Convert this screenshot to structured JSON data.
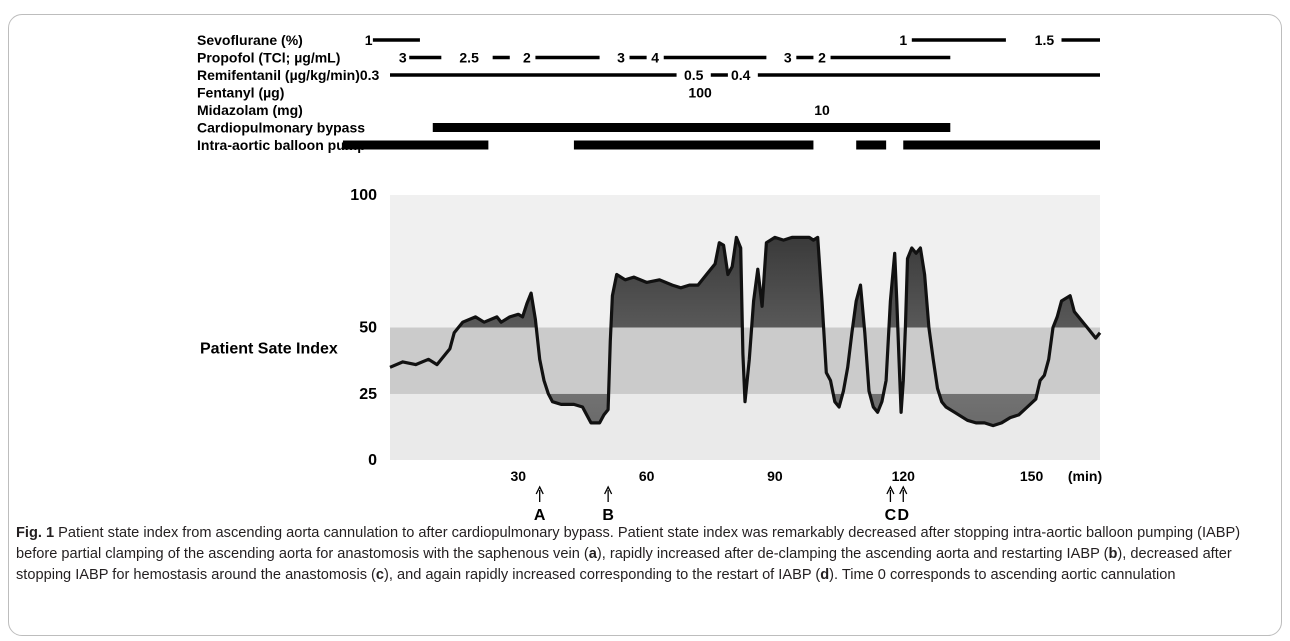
{
  "chart_data": {
    "type": "line",
    "x_unit": "(min)",
    "x_ticks": [
      30,
      60,
      90,
      120,
      150
    ],
    "y_ticks": [
      "100",
      "50",
      "25",
      "0"
    ],
    "ylabel": "Patient Sate Index",
    "ylim": [
      0,
      100
    ],
    "xlim": [
      0,
      166
    ],
    "band": [
      25,
      50
    ],
    "series": [
      {
        "values": [
          [
            0,
            35
          ],
          [
            3,
            37
          ],
          [
            6,
            36
          ],
          [
            9,
            38
          ],
          [
            11,
            36
          ],
          [
            13,
            40
          ],
          [
            14,
            42
          ],
          [
            15,
            48
          ],
          [
            17,
            52
          ],
          [
            20,
            54
          ],
          [
            22,
            52
          ],
          [
            25,
            54
          ],
          [
            26,
            52
          ],
          [
            28,
            54
          ],
          [
            30,
            55
          ],
          [
            31,
            54
          ],
          [
            32,
            59
          ],
          [
            33,
            63
          ],
          [
            34,
            53
          ],
          [
            35,
            38
          ],
          [
            36,
            30
          ],
          [
            37,
            25
          ],
          [
            38,
            22
          ],
          [
            40,
            21
          ],
          [
            43,
            21
          ],
          [
            45,
            20
          ],
          [
            46,
            17
          ],
          [
            47,
            14
          ],
          [
            48,
            14
          ],
          [
            49,
            14
          ],
          [
            50,
            17
          ],
          [
            51,
            19
          ],
          [
            51.5,
            45
          ],
          [
            52,
            62
          ],
          [
            53,
            70
          ],
          [
            55,
            68
          ],
          [
            57,
            69
          ],
          [
            60,
            67
          ],
          [
            63,
            68
          ],
          [
            66,
            66
          ],
          [
            68,
            65
          ],
          [
            70,
            66
          ],
          [
            72,
            66
          ],
          [
            74,
            70
          ],
          [
            76,
            74
          ],
          [
            77,
            82
          ],
          [
            78,
            81
          ],
          [
            79,
            70
          ],
          [
            80,
            73
          ],
          [
            81,
            84
          ],
          [
            82,
            80
          ],
          [
            82.5,
            40
          ],
          [
            83,
            22
          ],
          [
            84,
            38
          ],
          [
            85,
            60
          ],
          [
            86,
            72
          ],
          [
            87,
            58
          ],
          [
            88,
            82
          ],
          [
            90,
            84
          ],
          [
            92,
            83
          ],
          [
            94,
            84
          ],
          [
            96,
            84
          ],
          [
            98,
            84
          ],
          [
            99,
            83
          ],
          [
            100,
            84
          ],
          [
            101,
            60
          ],
          [
            102,
            33
          ],
          [
            103,
            30
          ],
          [
            104,
            22
          ],
          [
            105,
            20
          ],
          [
            106,
            26
          ],
          [
            107,
            35
          ],
          [
            108,
            48
          ],
          [
            109,
            60
          ],
          [
            110,
            66
          ],
          [
            111,
            48
          ],
          [
            112,
            26
          ],
          [
            113,
            20
          ],
          [
            114,
            18
          ],
          [
            115,
            22
          ],
          [
            116,
            30
          ],
          [
            117,
            60
          ],
          [
            118,
            78
          ],
          [
            118.5,
            60
          ],
          [
            119,
            38
          ],
          [
            119.5,
            18
          ],
          [
            120,
            30
          ],
          [
            120.5,
            50
          ],
          [
            121,
            76
          ],
          [
            122,
            80
          ],
          [
            123,
            78
          ],
          [
            124,
            80
          ],
          [
            125,
            70
          ],
          [
            126,
            50
          ],
          [
            127,
            38
          ],
          [
            128,
            27
          ],
          [
            129,
            22
          ],
          [
            130,
            20
          ],
          [
            132,
            18
          ],
          [
            135,
            15
          ],
          [
            137,
            14
          ],
          [
            139,
            14
          ],
          [
            141,
            13
          ],
          [
            143,
            14
          ],
          [
            145,
            16
          ],
          [
            147,
            17
          ],
          [
            149,
            20
          ],
          [
            151,
            23
          ],
          [
            152,
            30
          ],
          [
            153,
            32
          ],
          [
            154,
            38
          ],
          [
            155,
            50
          ],
          [
            156,
            54
          ],
          [
            157,
            60
          ],
          [
            159,
            62
          ],
          [
            160,
            56
          ],
          [
            162,
            52
          ],
          [
            163,
            50
          ],
          [
            164,
            48
          ],
          [
            165,
            46
          ],
          [
            166,
            48
          ]
        ]
      }
    ],
    "markers": [
      {
        "label": "A",
        "x": 35
      },
      {
        "label": "B",
        "x": 51
      },
      {
        "label": "C",
        "x": 117
      },
      {
        "label": "D",
        "x": 120
      }
    ]
  },
  "drug_rows": [
    {
      "name": "Sevoflurane (%)",
      "labels": [
        {
          "t": "1",
          "x": -5
        },
        {
          "t": "1",
          "x": 120
        },
        {
          "t": "1.5",
          "x": 153
        }
      ],
      "bars": [
        [
          -4,
          7,
          "thin"
        ],
        [
          122,
          144,
          "thin"
        ],
        [
          157,
          166,
          "thin"
        ]
      ]
    },
    {
      "name": "Propofol (TCl; µg/mL)",
      "labels": [
        {
          "t": "3",
          "x": 3
        },
        {
          "t": "2.5",
          "x": 18.5
        },
        {
          "t": "2",
          "x": 32
        },
        {
          "t": "3",
          "x": 54
        },
        {
          "t": "4",
          "x": 62
        },
        {
          "t": "3",
          "x": 93
        },
        {
          "t": "2",
          "x": 101
        }
      ],
      "bars": [
        [
          4.5,
          12,
          "thin"
        ],
        [
          24,
          28,
          "thin"
        ],
        [
          34,
          49,
          "thin"
        ],
        [
          56,
          60,
          "thin"
        ],
        [
          64,
          88,
          "thin"
        ],
        [
          95,
          99,
          "thin"
        ],
        [
          103,
          131,
          "thin"
        ]
      ]
    },
    {
      "name": "Remifentanil (µg/kg/min)0.3",
      "labels": [
        {
          "t": "0.5",
          "x": 71
        },
        {
          "t": "0.4",
          "x": 82
        }
      ],
      "bars": [
        [
          0,
          67,
          "thin"
        ],
        [
          75,
          79,
          "thin"
        ],
        [
          86,
          166,
          "thin"
        ]
      ]
    },
    {
      "name": "Fentanyl (µg)",
      "labels": [
        {
          "t": "100",
          "x": 72.5
        }
      ],
      "bars": []
    },
    {
      "name": "Midazolam (mg)",
      "labels": [
        {
          "t": "10",
          "x": 101
        }
      ],
      "bars": []
    },
    {
      "name": "Cardiopulmonary  bypass",
      "labels": [],
      "bars": [
        [
          10,
          131,
          "thick"
        ]
      ]
    },
    {
      "name": "Intra-aortic balloon pump",
      "labels": [],
      "bars": [
        [
          -11,
          23,
          "thick"
        ],
        [
          43,
          99,
          "thick"
        ],
        [
          109,
          116,
          "thick"
        ],
        [
          120,
          166,
          "thick"
        ]
      ]
    }
  ],
  "caption": {
    "fig": "Fig. 1",
    "segments": [
      {
        "t": " Patient state index from ascending aorta cannulation to after cardiopulmonary bypass. Patient state index was remarkably decreased after stopping intra-aortic balloon pumping (IABP) before partial clamping of the ascending aorta for anastomosis with the saphenous vein (",
        "b": false
      },
      {
        "t": "a",
        "b": true
      },
      {
        "t": "), rapidly increased after de-clamping the ascending aorta and restarting IABP (",
        "b": false
      },
      {
        "t": "b",
        "b": true
      },
      {
        "t": "), decreased after stopping IABP for hemostasis around the anastomosis (",
        "b": false
      },
      {
        "t": "c",
        "b": true
      },
      {
        "t": "), and again rapidly increased corresponding to the restart of IABP (",
        "b": false
      },
      {
        "t": "d",
        "b": true
      },
      {
        "t": "). Time 0 corresponds to ascending aortic cannulation",
        "b": false
      }
    ]
  },
  "colors": {
    "plot_bg": "#f0f0f0",
    "band": "#cbcbcb",
    "fill_dark": "#555555",
    "fill_light": "#e6e6e6",
    "line": "#111111",
    "text": "#231f20"
  }
}
